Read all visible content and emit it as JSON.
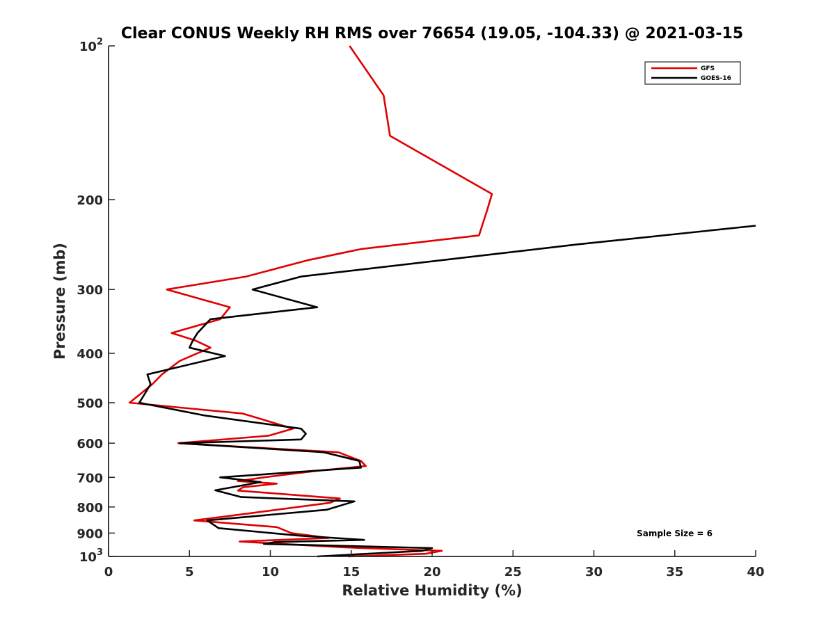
{
  "chart_data": {
    "type": "line",
    "title": "Clear CONUS Weekly RH RMS over 76654 (19.05, -104.33) @ 2021-03-15",
    "xlabel": "Relative Humidity (%)",
    "ylabel": "Pressure (mb)",
    "xlim": [
      0,
      40
    ],
    "ylim": [
      100,
      1000
    ],
    "yscale": "log",
    "y_reversed": true,
    "x_ticks": [
      0,
      5,
      10,
      15,
      20,
      25,
      30,
      35,
      40
    ],
    "x_tick_labels": [
      "0",
      "5",
      "10",
      "15",
      "20",
      "25",
      "30",
      "35",
      "40"
    ],
    "y_ticks": [
      100,
      200,
      300,
      400,
      500,
      600,
      700,
      800,
      900,
      1000
    ],
    "y_tick_labels": [
      {
        "base": "10",
        "exp": "2"
      },
      {
        "text": "200"
      },
      {
        "text": "300"
      },
      {
        "text": "400"
      },
      {
        "text": "500"
      },
      {
        "text": "600"
      },
      {
        "text": "700"
      },
      {
        "text": "800"
      },
      {
        "text": "900"
      },
      {
        "base": "10",
        "exp": "3"
      }
    ],
    "grid": false,
    "legend_position": "top-right",
    "annotation": "Sample Size = 6",
    "series": [
      {
        "name": "GFS",
        "color": "#e00000",
        "points": [
          [
            14.9,
            100
          ],
          [
            17.0,
            125
          ],
          [
            17.4,
            150
          ],
          [
            21.1,
            175
          ],
          [
            23.7,
            195
          ],
          [
            23.4,
            210
          ],
          [
            22.9,
            235
          ],
          [
            15.6,
            250
          ],
          [
            12.3,
            263
          ],
          [
            8.5,
            283
          ],
          [
            3.6,
            300
          ],
          [
            7.5,
            325
          ],
          [
            6.9,
            343
          ],
          [
            3.9,
            365
          ],
          [
            5.4,
            378
          ],
          [
            6.3,
            390
          ],
          [
            4.4,
            414
          ],
          [
            3.3,
            440
          ],
          [
            2.7,
            460
          ],
          [
            1.3,
            500
          ],
          [
            8.3,
            525
          ],
          [
            11.4,
            562
          ],
          [
            9.9,
            580
          ],
          [
            4.3,
            600
          ],
          [
            14.2,
            625
          ],
          [
            15.6,
            650
          ],
          [
            15.9,
            665
          ],
          [
            12.8,
            680
          ],
          [
            9.6,
            700
          ],
          [
            8.0,
            712
          ],
          [
            10.4,
            720
          ],
          [
            8.3,
            732
          ],
          [
            8.0,
            743
          ],
          [
            14.3,
            770
          ],
          [
            13.7,
            785
          ],
          [
            8.5,
            825
          ],
          [
            5.3,
            850
          ],
          [
            10.4,
            876
          ],
          [
            11.3,
            900
          ],
          [
            13.6,
            920
          ],
          [
            8.1,
            935
          ],
          [
            14.6,
            960
          ],
          [
            20.6,
            975
          ],
          [
            19.6,
            988
          ],
          [
            14.8,
            1000
          ]
        ]
      },
      {
        "name": "GOES-16",
        "color": "#000000",
        "points": [
          [
            40.0,
            225
          ],
          [
            28.9,
            245
          ],
          [
            11.9,
            283
          ],
          [
            8.9,
            300
          ],
          [
            12.9,
            325
          ],
          [
            6.3,
            343
          ],
          [
            5.5,
            365
          ],
          [
            5.2,
            378
          ],
          [
            5.0,
            390
          ],
          [
            7.2,
            405
          ],
          [
            2.4,
            440
          ],
          [
            2.6,
            460
          ],
          [
            1.9,
            500
          ],
          [
            6.0,
            530
          ],
          [
            11.9,
            562
          ],
          [
            12.2,
            575
          ],
          [
            11.9,
            590
          ],
          [
            4.4,
            600
          ],
          [
            13.3,
            625
          ],
          [
            15.5,
            650
          ],
          [
            15.6,
            670
          ],
          [
            6.9,
            700
          ],
          [
            9.4,
            715
          ],
          [
            6.6,
            742
          ],
          [
            8.2,
            765
          ],
          [
            15.2,
            780
          ],
          [
            13.5,
            810
          ],
          [
            6.1,
            850
          ],
          [
            6.8,
            880
          ],
          [
            11.7,
            910
          ],
          [
            15.8,
            928
          ],
          [
            10.3,
            937
          ],
          [
            9.6,
            945
          ],
          [
            20.0,
            963
          ],
          [
            19.4,
            975
          ],
          [
            16.5,
            986
          ],
          [
            12.9,
            1000
          ]
        ]
      }
    ]
  }
}
